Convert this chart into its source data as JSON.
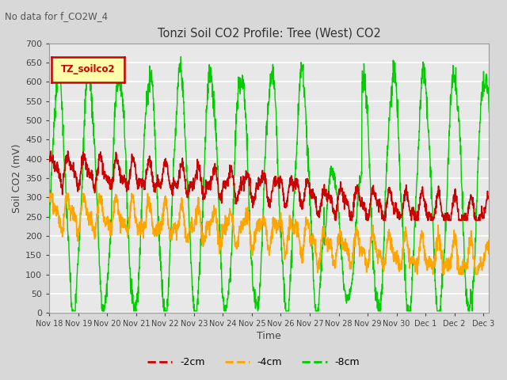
{
  "title": "Tonzi Soil CO2 Profile: Tree (West) CO2",
  "subtitle": "No data for f_CO2W_4",
  "ylabel": "Soil CO2 (mV)",
  "xlabel": "Time",
  "legend_label": "TZ_soilco2",
  "series_labels": [
    "-2cm",
    "-4cm",
    "-8cm"
  ],
  "series_colors": [
    "#cc0000",
    "#ffa500",
    "#00cc00"
  ],
  "ylim": [
    0,
    700
  ],
  "yticks": [
    0,
    50,
    100,
    150,
    200,
    250,
    300,
    350,
    400,
    450,
    500,
    550,
    600,
    650,
    700
  ],
  "xtick_labels": [
    "Nov 18",
    "Nov 19",
    "Nov 20",
    "Nov 21",
    "Nov 22",
    "Nov 23",
    "Nov 24",
    "Nov 25",
    "Nov 26",
    "Nov 27",
    "Nov 28",
    "Nov 29",
    "Nov 30",
    "Dec 1",
    "Dec 2",
    "Dec 3"
  ],
  "bg_color": "#d8d8d8",
  "plot_bg_color": "#e8e8e8",
  "grid_color": "#ffffff",
  "legend_box_color": "#ffffaa",
  "legend_box_edge": "#cc0000",
  "n_days": 15.2,
  "n_pts": 2000
}
